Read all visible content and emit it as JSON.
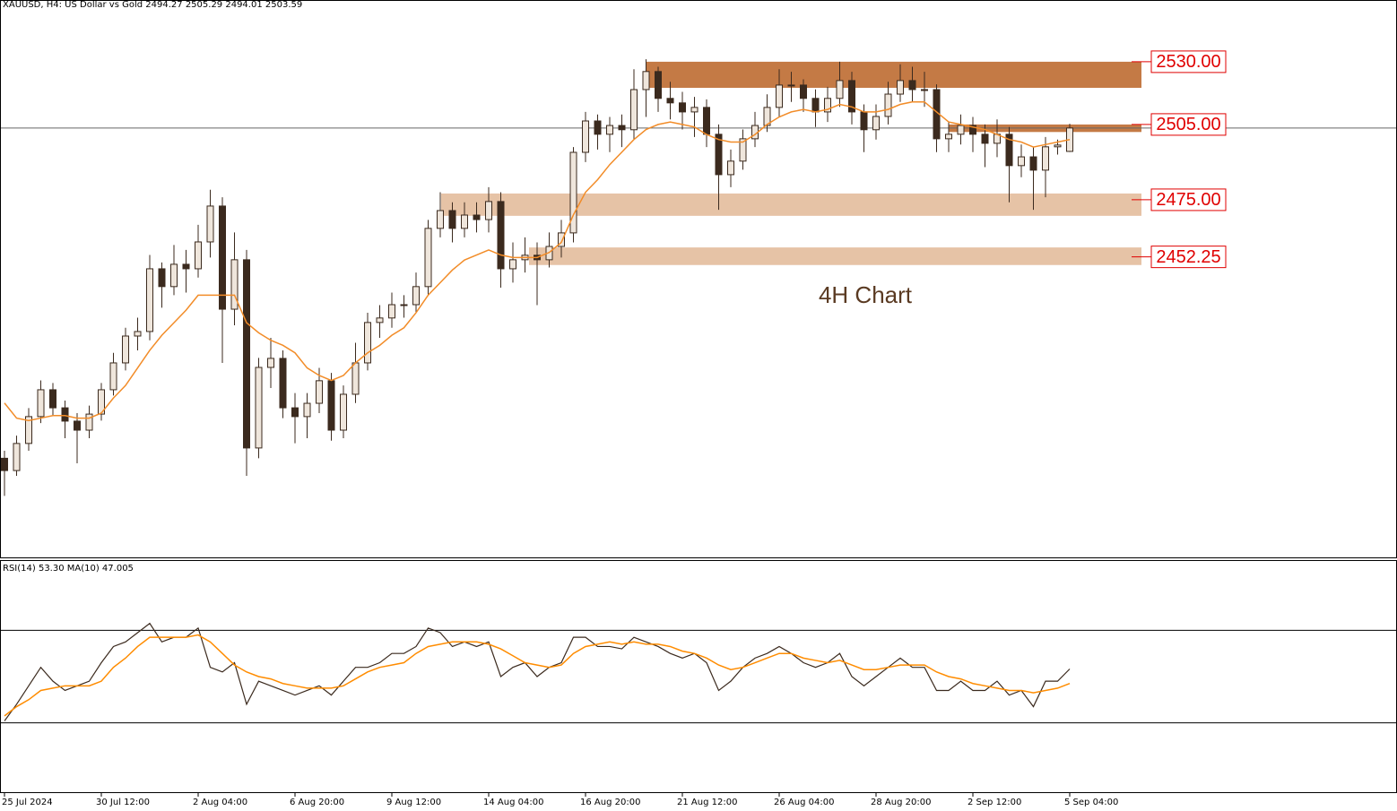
{
  "chart_data": [
    {
      "type": "candlestick",
      "header": "XAUUSD, H4:  US Dollar vs Gold  2494.27 2505.29 2494.01 2503.59",
      "annotation": "4H Chart",
      "ylim": [
        2332.5,
        2554.6
      ],
      "price_line": 2503.59,
      "up_color": "#efe6dc",
      "down_color": "#3b2a1e",
      "categories": [
        "25 Jul 2024",
        null,
        null,
        null,
        null,
        null,
        null,
        null,
        "30 Jul 12:00",
        null,
        null,
        null,
        null,
        null,
        null,
        null,
        "2 Aug 04:00",
        null,
        null,
        null,
        null,
        null,
        null,
        null,
        "6 Aug 20:00",
        null,
        null,
        null,
        null,
        null,
        null,
        null,
        "9 Aug 12:00",
        null,
        null,
        null,
        null,
        null,
        null,
        null,
        "14 Aug 04:00",
        null,
        null,
        null,
        null,
        null,
        null,
        null,
        "16 Aug 20:00",
        null,
        null,
        null,
        null,
        null,
        null,
        null,
        "21 Aug 12:00",
        null,
        null,
        null,
        null,
        null,
        null,
        null,
        "26 Aug 04:00",
        null,
        null,
        null,
        null,
        null,
        null,
        null,
        "28 Aug 20:00",
        null,
        null,
        null,
        null,
        null,
        null,
        null,
        "2 Sep 12:00",
        null,
        null,
        null,
        null,
        null,
        null,
        null,
        "5 Sep 04:00"
      ],
      "open": [
        2372.0,
        2367.1,
        2377.9,
        2388.6,
        2399.3,
        2392.1,
        2386.8,
        2383.2,
        2389.6,
        2399.3,
        2410.0,
        2420.7,
        2422.5,
        2447.5,
        2440.4,
        2449.3,
        2447.5,
        2458.2,
        2472.5,
        2431.4,
        2451.1,
        2376.1,
        2408.2,
        2411.8,
        2392.1,
        2388.6,
        2393.9,
        2402.9,
        2383.2,
        2397.5,
        2410.0,
        2426.1,
        2427.9,
        2433.2,
        2433.2,
        2440.4,
        2463.6,
        2470.7,
        2463.6,
        2468.9,
        2467.1,
        2474.3,
        2447.5,
        2451.1,
        2452.9,
        2451.1,
        2456.4,
        2461.8,
        2493.9,
        2506.4,
        2501.1,
        2504.6,
        2502.9,
        2518.9,
        2526.1,
        2515.4,
        2513.6,
        2510.0,
        2511.8,
        2501.1,
        2485.0,
        2490.4,
        2499.3,
        2504.6,
        2511.8,
        2520.7,
        2520.7,
        2515.4,
        2510.0,
        2515.4,
        2522.5,
        2510.0,
        2502.9,
        2508.2,
        2517.1,
        2522.5,
        2518.9,
        2518.9,
        2499.3,
        2501.1,
        2504.6,
        2501.1,
        2497.5,
        2501.1,
        2488.6,
        2492.1,
        2486.8,
        2496.1,
        2494.27
      ],
      "high": [
        2375,
        2381,
        2392,
        2403,
        2402,
        2395,
        2390,
        2393,
        2402,
        2414,
        2424,
        2428,
        2453,
        2450,
        2457,
        2455,
        2465,
        2479,
        2476,
        2462,
        2455,
        2412,
        2420,
        2415,
        2398,
        2398,
        2408,
        2406,
        2401,
        2418,
        2430,
        2433,
        2438,
        2437,
        2446,
        2467,
        2478,
        2474,
        2474,
        2474,
        2480,
        2478,
        2458,
        2460,
        2458,
        2462,
        2467,
        2496,
        2510,
        2509,
        2508,
        2509,
        2527,
        2531,
        2528,
        2522,
        2518,
        2516,
        2515,
        2505,
        2495,
        2503,
        2510,
        2517,
        2527,
        2526,
        2523,
        2519,
        2520,
        2530,
        2526,
        2513,
        2513,
        2522,
        2529,
        2528,
        2526,
        2521,
        2506,
        2509,
        2508,
        2505,
        2507,
        2504,
        2497,
        2496,
        2500,
        2499,
        2505.29
      ],
      "low": [
        2357,
        2365,
        2375,
        2386,
        2389,
        2380,
        2370,
        2380,
        2387,
        2397,
        2407,
        2415,
        2419,
        2432,
        2437,
        2438,
        2444,
        2452,
        2410,
        2425,
        2365,
        2372,
        2400,
        2388,
        2378,
        2380,
        2390,
        2379,
        2380,
        2394,
        2407,
        2420,
        2424,
        2428,
        2430,
        2437,
        2460,
        2458,
        2460,
        2462,
        2462,
        2440,
        2442,
        2446,
        2433,
        2448,
        2452,
        2458,
        2490,
        2495,
        2494,
        2496,
        2499,
        2508,
        2510,
        2507,
        2503,
        2500,
        2496,
        2471,
        2480,
        2487,
        2496,
        2502,
        2508,
        2514,
        2510,
        2504,
        2506,
        2512,
        2505,
        2494,
        2499,
        2505,
        2514,
        2514,
        2512,
        2494,
        2494,
        2497,
        2494,
        2488,
        2492,
        2474,
        2484,
        2471,
        2476,
        2493,
        2494.01
      ],
      "close": [
        2367.1,
        2377.9,
        2388.6,
        2399.3,
        2392.1,
        2386.8,
        2383.2,
        2389.6,
        2399.3,
        2410.0,
        2420.7,
        2422.5,
        2447.5,
        2440.4,
        2449.3,
        2447.5,
        2458.2,
        2472.5,
        2431.4,
        2451.1,
        2376.1,
        2408.2,
        2411.8,
        2392.1,
        2388.6,
        2393.9,
        2402.9,
        2383.2,
        2397.5,
        2410.0,
        2426.1,
        2427.9,
        2433.2,
        2433.2,
        2440.4,
        2463.6,
        2470.7,
        2463.6,
        2468.9,
        2467.1,
        2474.3,
        2447.5,
        2451.1,
        2452.9,
        2451.1,
        2456.4,
        2461.8,
        2493.9,
        2506.4,
        2501.1,
        2504.6,
        2502.9,
        2518.9,
        2526.1,
        2515.4,
        2513.6,
        2510.0,
        2511.8,
        2501.1,
        2485.0,
        2490.4,
        2499.3,
        2504.6,
        2511.8,
        2520.7,
        2520.7,
        2515.4,
        2510.0,
        2515.4,
        2522.5,
        2510.0,
        2502.9,
        2508.2,
        2517.1,
        2522.5,
        2518.9,
        2518.9,
        2499.3,
        2501.1,
        2504.6,
        2501.1,
        2497.5,
        2501.1,
        2488.6,
        2492.1,
        2486.8,
        2496.1,
        2496.8,
        2503.59
      ],
      "ma": {
        "color": "#f28c28",
        "values": [
          2394,
          2388,
          2387,
          2388,
          2389,
          2389,
          2388,
          2388,
          2390,
          2396,
          2401,
          2408,
          2415,
          2421,
          2426,
          2431,
          2437,
          2437,
          2437,
          2437,
          2426,
          2422,
          2419,
          2417,
          2414,
          2408,
          2405,
          2403,
          2405,
          2410,
          2414,
          2417,
          2421,
          2424,
          2430,
          2437,
          2442,
          2447,
          2451,
          2453,
          2455,
          2453,
          2452,
          2452,
          2452,
          2454,
          2458,
          2469,
          2478,
          2483,
          2489,
          2494,
          2499,
          2503,
          2505,
          2506,
          2505,
          2504,
          2501,
          2499,
          2498,
          2498,
          2501,
          2505,
          2508,
          2510,
          2511,
          2510,
          2511,
          2513,
          2512,
          2510,
          2510,
          2511,
          2513,
          2514,
          2514,
          2510,
          2506,
          2505,
          2504,
          2503,
          2501,
          2499,
          2498,
          2496,
          2497,
          2498,
          2499
        ]
      },
      "zones": [
        {
          "level": 2530,
          "label": "2530.00",
          "top": 2530,
          "bottom": 2519.6,
          "color": "#c47a45"
        },
        {
          "level": 2505,
          "label": "2505.00",
          "top": 2505,
          "bottom": 2502,
          "color": "#c47a45"
        },
        {
          "level": 2475,
          "label": "2475.00",
          "top": 2477.5,
          "bottom": 2468.6,
          "color": "#e6c3a6"
        },
        {
          "level": 2452.25,
          "label": "2452.25",
          "top": 2456,
          "bottom": 2449,
          "color": "#e6c3a6"
        }
      ],
      "label_color": "#e00000"
    },
    {
      "type": "line",
      "header": "RSI(14) 53.30 MA(10) 47.005",
      "ylim": [
        0,
        100
      ],
      "levels": [
        30,
        70
      ],
      "series": [
        {
          "color": "#3b2a1e",
          "values": [
            30.8,
            38,
            46,
            54,
            48,
            44,
            46,
            48,
            56,
            63,
            65,
            69,
            73,
            65,
            67,
            67,
            71,
            54,
            52,
            56,
            38,
            48,
            46,
            44,
            42,
            44,
            46,
            42,
            48,
            54,
            54,
            56,
            60,
            60,
            63,
            71,
            69,
            63,
            65,
            63,
            65,
            50,
            54,
            56,
            50,
            54,
            56,
            67,
            67,
            63,
            63,
            62,
            67,
            65,
            63,
            60,
            58,
            60,
            56,
            44,
            48,
            54,
            58,
            60,
            63,
            60,
            56,
            54,
            56,
            60,
            50,
            46,
            50,
            54,
            58,
            54,
            54,
            44,
            44,
            48,
            44,
            44,
            48,
            42,
            44,
            37,
            48,
            48,
            53.3
          ]
        },
        {
          "color": "#ff8c00",
          "values": [
            33,
            37,
            40,
            44,
            45,
            46,
            46,
            46,
            48,
            54,
            58,
            63,
            67,
            67,
            67,
            67,
            68,
            65,
            60,
            55,
            52,
            50,
            49,
            47,
            46,
            45,
            45,
            45,
            46,
            49,
            52,
            54,
            55,
            56,
            60,
            63,
            64,
            65,
            65,
            65,
            64,
            62,
            59,
            56,
            55,
            54,
            55,
            60,
            63,
            64,
            65,
            64,
            65,
            64,
            64,
            63,
            61,
            60,
            58,
            55,
            53,
            54,
            56,
            58,
            60,
            60,
            58,
            57,
            56,
            57,
            55,
            53,
            53,
            54,
            55,
            55,
            55,
            52,
            50,
            49,
            47,
            46,
            45,
            44,
            44,
            43,
            44,
            45,
            47.005
          ]
        }
      ]
    }
  ]
}
